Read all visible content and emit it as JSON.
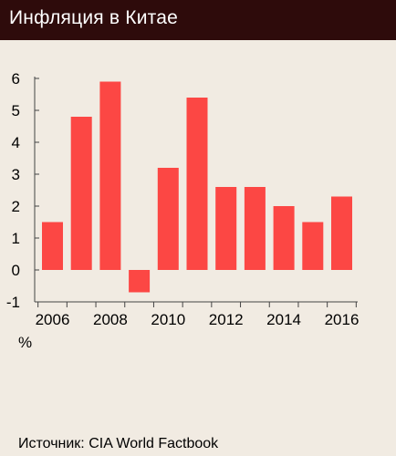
{
  "header": {
    "title": "Инфляция в Китае"
  },
  "footer": {
    "source": "Источник: CIA World Factbook"
  },
  "colors": {
    "bar": "#fc4744",
    "header_bg": "#2e0b0b",
    "background": "#f1ebe2",
    "axis": "#444444"
  },
  "chart_data": {
    "type": "bar",
    "title": "Инфляция в Китае",
    "unit_label": "%",
    "categories": [
      "2006",
      "2007",
      "2008",
      "2009",
      "2010",
      "2011",
      "2012",
      "2013",
      "2014",
      "2015",
      "2016"
    ],
    "values": [
      1.5,
      4.8,
      5.9,
      -0.7,
      3.2,
      5.4,
      2.6,
      2.6,
      2.0,
      1.5,
      2.3
    ],
    "x_tick_labels": [
      "2006",
      "2008",
      "2010",
      "2012",
      "2014",
      "2016"
    ],
    "y_tick_labels": [
      "6",
      "5",
      "4",
      "3",
      "2",
      "1",
      "0",
      "-1"
    ],
    "ylim": [
      -1,
      6
    ],
    "grid": false,
    "legend": "none"
  }
}
